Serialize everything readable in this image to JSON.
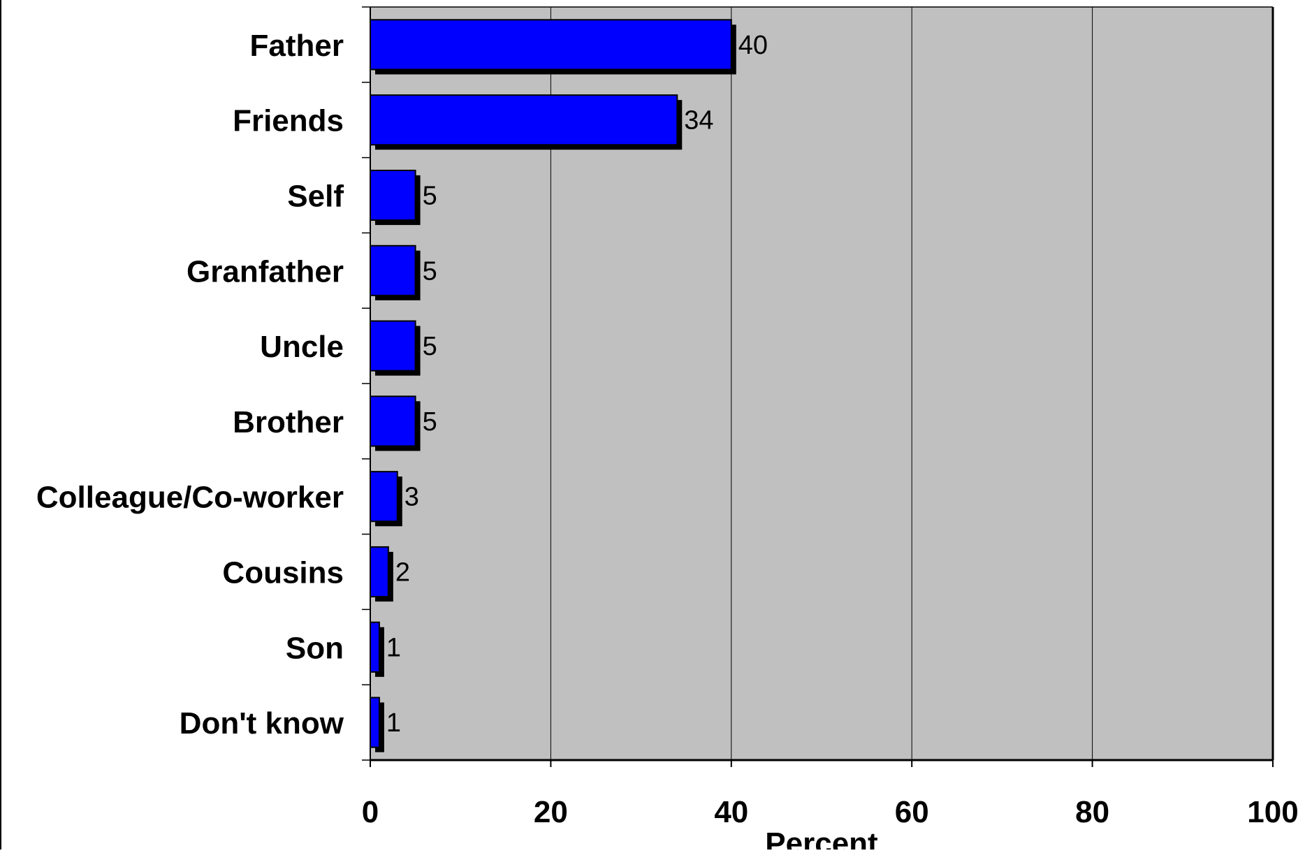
{
  "chart_data": {
    "type": "bar",
    "orientation": "horizontal",
    "categories": [
      "Father",
      "Friends",
      "Self",
      "Granfather",
      "Uncle",
      "Brother",
      "Colleague/Co-worker",
      "Cousins",
      "Son",
      "Don't know"
    ],
    "values": [
      40,
      34,
      5,
      5,
      5,
      5,
      3,
      2,
      1,
      1
    ],
    "data_labels": [
      "40",
      "34",
      "5",
      "5",
      "5",
      "5",
      "3",
      "2",
      "1",
      "1"
    ],
    "xlabel": "Percent",
    "xlim": [
      0,
      100
    ],
    "xticks": [
      0,
      20,
      40,
      60,
      80,
      100
    ],
    "xtick_labels": [
      "0",
      "20",
      "40",
      "60",
      "80",
      "100"
    ],
    "grid": "vertical",
    "legend": "none",
    "colors": {
      "bar": "#0000ff",
      "bar_shadow": "#000000",
      "plot_background": "#c0c0c0",
      "gridline": "#000000"
    }
  }
}
